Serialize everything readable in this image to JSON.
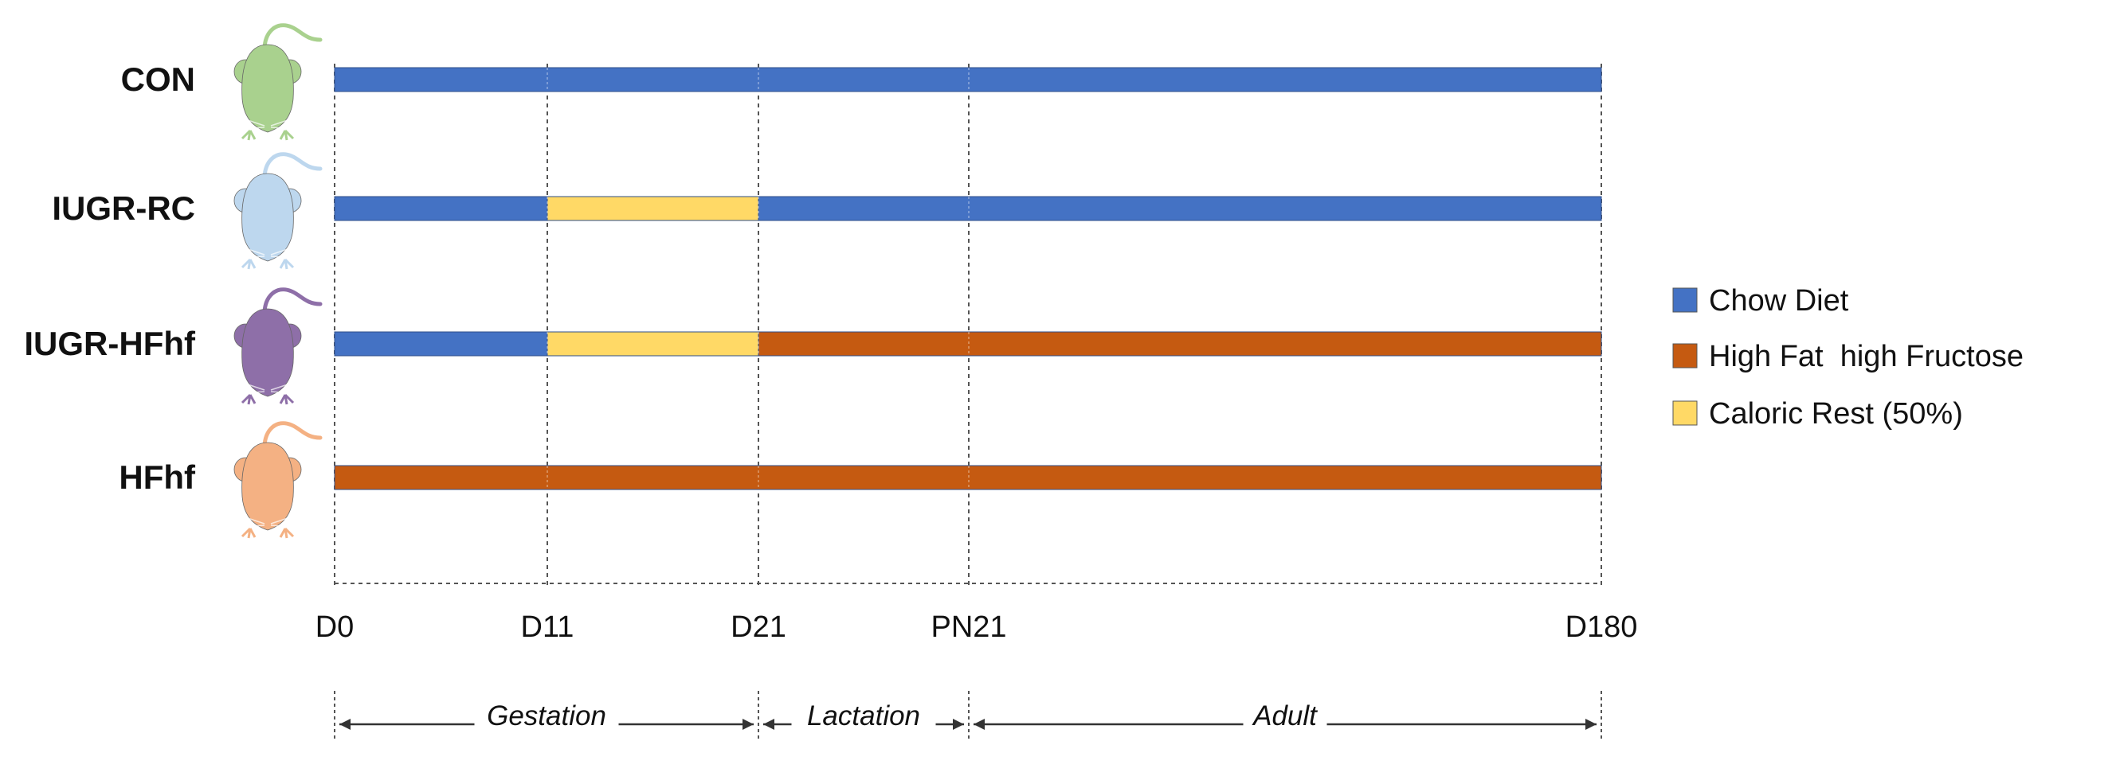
{
  "colors": {
    "chow": "#4472C4",
    "hfhf": "#C55A11",
    "caloric": "#FFD966",
    "grid": "#555555",
    "mouse_con": "#A9D18E",
    "mouse_iugr_rc": "#BDD7EE",
    "mouse_iugr_hfhf": "#8E6FA8",
    "mouse_hfhf": "#F4B183"
  },
  "ticks": [
    "D0",
    "D11",
    "D21",
    "PN21",
    "D180"
  ],
  "groups": [
    {
      "key": "con",
      "label": "CON",
      "mouse_icon": "mouse-icon",
      "mouse_color": "mouse_con",
      "segments": [
        {
          "diet": "chow",
          "from": 0,
          "to": 4
        }
      ]
    },
    {
      "key": "iugr-rc",
      "label": "IUGR-RC",
      "mouse_icon": "mouse-icon",
      "mouse_color": "mouse_iugr_rc",
      "segments": [
        {
          "diet": "chow",
          "from": 0,
          "to": 1
        },
        {
          "diet": "caloric",
          "from": 1,
          "to": 2
        },
        {
          "diet": "chow",
          "from": 2,
          "to": 4
        }
      ]
    },
    {
      "key": "iugr-hfhf",
      "label": "IUGR-HFhf",
      "mouse_icon": "mouse-icon",
      "mouse_color": "mouse_iugr_hfhf",
      "segments": [
        {
          "diet": "chow",
          "from": 0,
          "to": 1
        },
        {
          "diet": "caloric",
          "from": 1,
          "to": 2
        },
        {
          "diet": "hfhf",
          "from": 2,
          "to": 4
        }
      ]
    },
    {
      "key": "hfhf",
      "label": "HFhf",
      "mouse_icon": "mouse-icon",
      "mouse_color": "mouse_hfhf",
      "segments": [
        {
          "diet": "hfhf",
          "from": 0,
          "to": 4
        }
      ]
    }
  ],
  "phases": [
    {
      "label": "Gestation",
      "from": 0,
      "to": 2
    },
    {
      "label": "Lactation",
      "from": 2,
      "to": 3
    },
    {
      "label": "Adult",
      "from": 3,
      "to": 4
    }
  ],
  "legend": [
    {
      "diet": "chow",
      "label": "Chow Diet"
    },
    {
      "diet": "hfhf",
      "label": "High Fat  high Fructose"
    },
    {
      "diet": "caloric",
      "label": "Caloric Rest (50%)"
    }
  ]
}
